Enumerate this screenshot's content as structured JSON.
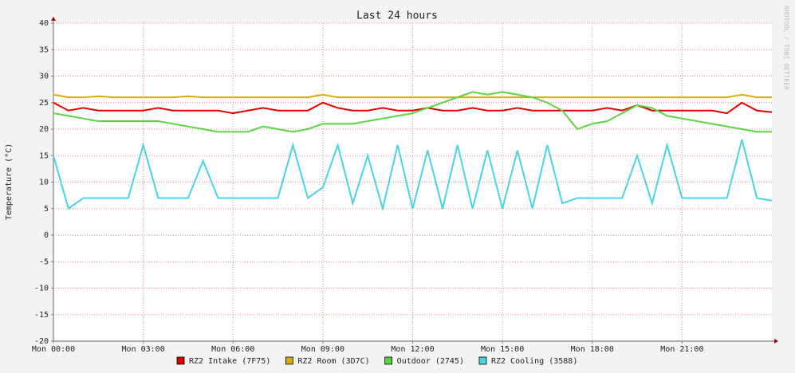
{
  "chart_data": {
    "type": "line",
    "title": "Last 24 hours",
    "y_label": "Temperature (°C)",
    "watermark": "RRDTOOL / TOBI OETIKER",
    "x": [
      0,
      0.5,
      1,
      1.5,
      2,
      2.5,
      3,
      3.5,
      4,
      4.5,
      5,
      5.5,
      6,
      6.5,
      7,
      7.5,
      8,
      8.5,
      9,
      9.5,
      10,
      10.5,
      11,
      11.5,
      12,
      12.5,
      13,
      13.5,
      14,
      14.5,
      15,
      15.5,
      16,
      16.5,
      17,
      17.5,
      18,
      18.5,
      19,
      19.5,
      20,
      20.5,
      21,
      21.5,
      22,
      22.5,
      23,
      23.5,
      24
    ],
    "xlim": [
      0,
      24
    ],
    "xticks": [
      {
        "value": 0,
        "label": "Mon 00:00"
      },
      {
        "value": 3,
        "label": "Mon 03:00"
      },
      {
        "value": 6,
        "label": "Mon 06:00"
      },
      {
        "value": 9,
        "label": "Mon 09:00"
      },
      {
        "value": 12,
        "label": "Mon 12:00"
      },
      {
        "value": 15,
        "label": "Mon 15:00"
      },
      {
        "value": 18,
        "label": "Mon 18:00"
      },
      {
        "value": 21,
        "label": "Mon 21:00"
      }
    ],
    "ylim": [
      -20,
      40
    ],
    "yticks": [
      -20,
      -15,
      -10,
      -5,
      0,
      5,
      10,
      15,
      20,
      25,
      30,
      35,
      40
    ],
    "grid": true,
    "series": [
      {
        "name": "RZ2 Intake (7F75)",
        "color": "#e00000",
        "values": [
          25,
          23.5,
          24,
          23.5,
          23.5,
          23.5,
          23.5,
          24,
          23.5,
          23.5,
          23.5,
          23.5,
          23,
          23.5,
          24,
          23.5,
          23.5,
          23.5,
          25,
          24,
          23.5,
          23.5,
          24,
          23.5,
          23.5,
          24,
          23.5,
          23.5,
          24,
          23.5,
          23.5,
          24,
          23.5,
          23.5,
          23.5,
          23.5,
          23.5,
          24,
          23.5,
          24.5,
          23.5,
          23.5,
          23.5,
          23.5,
          23.5,
          23,
          25,
          23.5,
          23.2
        ]
      },
      {
        "name": "RZ2 Room (3D7C)",
        "color": "#d8ac00",
        "values": [
          26.5,
          26,
          26,
          26.2,
          26,
          26,
          26,
          26,
          26,
          26.2,
          26,
          26,
          26,
          26,
          26,
          26,
          26,
          26,
          26.5,
          26,
          26,
          26,
          26,
          26,
          26,
          26,
          26,
          26,
          26,
          26,
          26,
          26,
          26,
          26,
          26,
          26,
          26,
          26,
          26,
          26,
          26,
          26,
          26,
          26,
          26,
          26,
          26.5,
          26,
          26
        ]
      },
      {
        "name": "Outdoor (2745)",
        "color": "#5ad440",
        "values": [
          23,
          22.5,
          22,
          21.5,
          21.5,
          21.5,
          21.5,
          21.5,
          21,
          20.5,
          20,
          19.5,
          19.5,
          19.5,
          20.5,
          20,
          19.5,
          20,
          21,
          21,
          21,
          21.5,
          22,
          22.5,
          23,
          24,
          25,
          26,
          27,
          26.5,
          27,
          26.5,
          26,
          25,
          23.5,
          20,
          21,
          21.5,
          23,
          24.5,
          24,
          22.5,
          22,
          21.5,
          21,
          20.5,
          20,
          19.5,
          19.5
        ]
      },
      {
        "name": "RZ2 Cooling (3588)",
        "color": "#48d4e4",
        "values": [
          15,
          5,
          7,
          7,
          7,
          7,
          17,
          7,
          7,
          7,
          14,
          7,
          7,
          7,
          7,
          7,
          17,
          7,
          9,
          17,
          6,
          15,
          5,
          17,
          5,
          16,
          5,
          17,
          5,
          16,
          5,
          16,
          5,
          17,
          6,
          7,
          7,
          7,
          7,
          15,
          6,
          17,
          7,
          7,
          7,
          7,
          18,
          7,
          6.5
        ]
      }
    ]
  }
}
